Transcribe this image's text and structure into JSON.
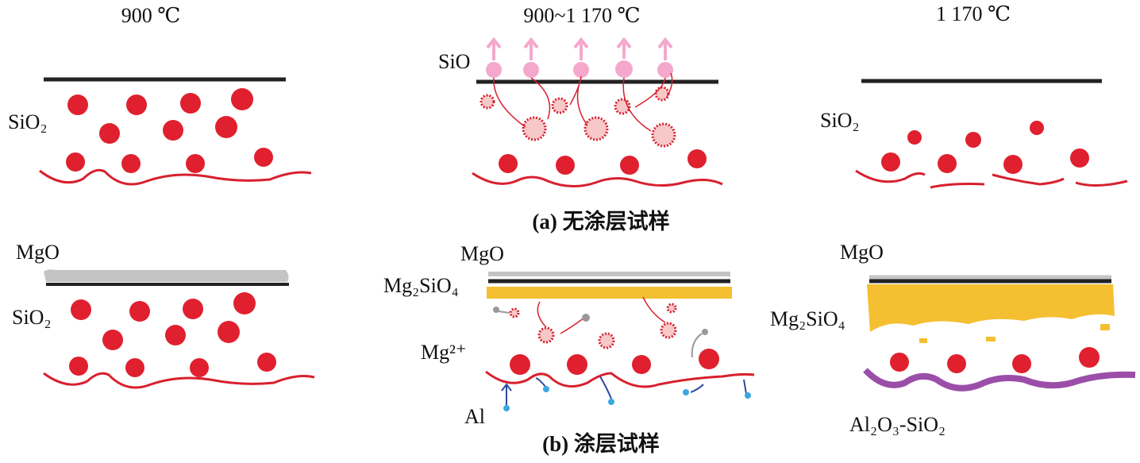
{
  "column_titles": [
    "900 ℃",
    "900~1 170 ℃",
    "1 170 ℃"
  ],
  "captions": [
    "(a) 无涂层试样",
    "(b) 涂层试样"
  ],
  "labels": [
    "SiO₂",
    "SiO",
    "SiO₂",
    "MgO",
    "SiO₂",
    "MgO",
    "Mg₂SiO₄",
    "Mg²⁺",
    "Al",
    "MgO",
    "Mg₂SiO₄",
    "Al₂O₃-SiO₂"
  ]
}
